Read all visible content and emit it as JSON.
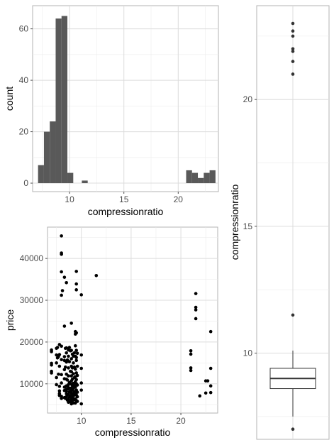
{
  "chart_data": [
    {
      "id": "histogram",
      "type": "bar",
      "xlabel": "compressionratio",
      "ylabel": "count",
      "xlim": [
        6.6,
        23.7
      ],
      "ylim": [
        -3.3,
        69
      ],
      "xticks": [
        10,
        15,
        20
      ],
      "yticks": [
        0,
        20,
        40,
        60
      ],
      "binwidth": 0.54,
      "bins": [
        {
          "x": 7.37,
          "count": 7
        },
        {
          "x": 7.91,
          "count": 20
        },
        {
          "x": 8.45,
          "count": 24
        },
        {
          "x": 8.99,
          "count": 64
        },
        {
          "x": 9.53,
          "count": 65
        },
        {
          "x": 10.07,
          "count": 4
        },
        {
          "x": 11.4,
          "count": 1
        },
        {
          "x": 21.0,
          "count": 5
        },
        {
          "x": 21.54,
          "count": 4
        },
        {
          "x": 22.08,
          "count": 2
        },
        {
          "x": 22.62,
          "count": 4
        },
        {
          "x": 23.16,
          "count": 5
        }
      ],
      "bar_color": "#595959",
      "grid": true
    },
    {
      "id": "scatter",
      "type": "scatter",
      "xlabel": "compressionratio",
      "ylabel": "price",
      "xlim": [
        6.6,
        23.7
      ],
      "ylim": [
        3000,
        47500
      ],
      "xticks": [
        10,
        15,
        20
      ],
      "yticks": [
        10000,
        20000,
        30000,
        40000
      ],
      "ytick_labels": [
        "10000",
        "20000",
        "30000",
        "40000"
      ],
      "point_color": "#000000",
      "grid": true,
      "points": [
        [
          8.0,
          45400
        ],
        [
          8.0,
          41300
        ],
        [
          8.0,
          41000
        ],
        [
          8.0,
          36800
        ],
        [
          8.3,
          35500
        ],
        [
          8.5,
          34200
        ],
        [
          8.1,
          32300
        ],
        [
          8.0,
          31200
        ],
        [
          9.5,
          36900
        ],
        [
          9.5,
          33900
        ],
        [
          9.5,
          32500
        ],
        [
          10.0,
          31300
        ],
        [
          11.5,
          35900
        ],
        [
          7.0,
          18100
        ],
        [
          7.0,
          17700
        ],
        [
          7.0,
          14900
        ],
        [
          7.0,
          14500
        ],
        [
          7.0,
          13000
        ],
        [
          7.0,
          12600
        ],
        [
          7.5,
          18500
        ],
        [
          7.5,
          16900
        ],
        [
          7.5,
          15000
        ],
        [
          7.5,
          11500
        ],
        [
          7.5,
          9800
        ],
        [
          7.6,
          18700
        ],
        [
          7.6,
          16200
        ],
        [
          7.7,
          16500
        ],
        [
          7.7,
          12300
        ],
        [
          7.8,
          19400
        ],
        [
          7.8,
          17000
        ],
        [
          7.8,
          14200
        ],
        [
          7.8,
          9400
        ],
        [
          7.8,
          8300
        ],
        [
          7.8,
          7700
        ],
        [
          7.8,
          7300
        ],
        [
          7.8,
          7200
        ],
        [
          8.0,
          19000
        ],
        [
          8.0,
          15800
        ],
        [
          8.0,
          12200
        ],
        [
          8.0,
          10200
        ],
        [
          8.0,
          7000
        ],
        [
          8.0,
          6500
        ],
        [
          8.3,
          23800
        ],
        [
          8.3,
          16500
        ],
        [
          8.3,
          15600
        ],
        [
          8.3,
          13400
        ],
        [
          8.3,
          11200
        ],
        [
          8.3,
          9200
        ],
        [
          8.3,
          8400
        ],
        [
          8.3,
          6700
        ],
        [
          8.4,
          18500
        ],
        [
          8.4,
          14000
        ],
        [
          8.4,
          9300
        ],
        [
          8.4,
          6500
        ],
        [
          8.5,
          18600
        ],
        [
          8.5,
          17400
        ],
        [
          8.5,
          15200
        ],
        [
          8.5,
          12300
        ],
        [
          8.5,
          11100
        ],
        [
          8.5,
          9500
        ],
        [
          8.5,
          8600
        ],
        [
          8.5,
          8200
        ],
        [
          8.5,
          7600
        ],
        [
          8.5,
          6900
        ],
        [
          8.6,
          15700
        ],
        [
          8.6,
          10900
        ],
        [
          8.6,
          7400
        ],
        [
          8.6,
          6100
        ],
        [
          8.7,
          18100
        ],
        [
          8.7,
          16600
        ],
        [
          8.7,
          13800
        ],
        [
          8.7,
          11900
        ],
        [
          8.7,
          9800
        ],
        [
          8.7,
          9100
        ],
        [
          8.7,
          8800
        ],
        [
          8.7,
          7500
        ],
        [
          8.7,
          6300
        ],
        [
          8.7,
          5600
        ],
        [
          8.8,
          18700
        ],
        [
          8.8,
          15300
        ],
        [
          8.8,
          10300
        ],
        [
          8.8,
          8100
        ],
        [
          8.8,
          6800
        ],
        [
          8.9,
          17900
        ],
        [
          8.9,
          13000
        ],
        [
          8.9,
          8900
        ],
        [
          8.9,
          7100
        ],
        [
          8.9,
          5700
        ],
        [
          9.0,
          24500
        ],
        [
          9.0,
          18000
        ],
        [
          9.0,
          16000
        ],
        [
          9.0,
          14200
        ],
        [
          9.0,
          12900
        ],
        [
          9.0,
          11900
        ],
        [
          9.0,
          10700
        ],
        [
          9.0,
          9900
        ],
        [
          9.0,
          9000
        ],
        [
          9.0,
          8300
        ],
        [
          9.0,
          7800
        ],
        [
          9.0,
          7200
        ],
        [
          9.0,
          6700
        ],
        [
          9.0,
          6200
        ],
        [
          9.0,
          5600
        ],
        [
          9.0,
          5200
        ],
        [
          9.1,
          17100
        ],
        [
          9.1,
          13800
        ],
        [
          9.1,
          11100
        ],
        [
          9.1,
          9600
        ],
        [
          9.1,
          8600
        ],
        [
          9.1,
          7000
        ],
        [
          9.1,
          6000
        ],
        [
          9.2,
          16600
        ],
        [
          9.2,
          15000
        ],
        [
          9.2,
          12400
        ],
        [
          9.2,
          10100
        ],
        [
          9.2,
          8900
        ],
        [
          9.2,
          7600
        ],
        [
          9.2,
          6500
        ],
        [
          9.2,
          5400
        ],
        [
          9.3,
          17400
        ],
        [
          9.3,
          14000
        ],
        [
          9.3,
          11500
        ],
        [
          9.3,
          9500
        ],
        [
          9.3,
          8100
        ],
        [
          9.3,
          7300
        ],
        [
          9.3,
          6200
        ],
        [
          9.4,
          22500
        ],
        [
          9.4,
          21900
        ],
        [
          9.4,
          19100
        ],
        [
          9.4,
          16600
        ],
        [
          9.4,
          13500
        ],
        [
          9.4,
          11700
        ],
        [
          9.4,
          10500
        ],
        [
          9.4,
          9200
        ],
        [
          9.4,
          8200
        ],
        [
          9.4,
          7600
        ],
        [
          9.4,
          6400
        ],
        [
          9.4,
          5400
        ],
        [
          9.5,
          22200
        ],
        [
          9.5,
          18000
        ],
        [
          9.5,
          16300
        ],
        [
          9.5,
          15600
        ],
        [
          9.5,
          12600
        ],
        [
          9.5,
          11000
        ],
        [
          9.5,
          10000
        ],
        [
          9.5,
          8500
        ],
        [
          9.5,
          7300
        ],
        [
          9.5,
          6000
        ],
        [
          9.6,
          17300
        ],
        [
          9.6,
          14200
        ],
        [
          9.6,
          12000
        ],
        [
          9.6,
          9700
        ],
        [
          9.6,
          8000
        ],
        [
          9.6,
          6900
        ],
        [
          9.6,
          5800
        ],
        [
          10.0,
          16900
        ],
        [
          10.0,
          13700
        ],
        [
          10.0,
          10200
        ],
        [
          10.0,
          8500
        ],
        [
          10.0,
          5200
        ],
        [
          21.0,
          17900
        ],
        [
          21.0,
          17100
        ],
        [
          21.0,
          13800
        ],
        [
          21.0,
          13200
        ],
        [
          21.5,
          31600
        ],
        [
          21.5,
          28300
        ],
        [
          21.5,
          27700
        ],
        [
          21.5,
          25600
        ],
        [
          21.9,
          7100
        ],
        [
          22.5,
          10700
        ],
        [
          22.5,
          7800
        ],
        [
          22.7,
          10700
        ],
        [
          23.0,
          22500
        ],
        [
          23.0,
          13700
        ],
        [
          23.0,
          9500
        ],
        [
          23.0,
          7900
        ]
      ]
    },
    {
      "id": "boxplot",
      "type": "box",
      "ylabel": "compressionratio",
      "ylim": [
        6.6,
        23.7
      ],
      "yticks": [
        10,
        15,
        20
      ],
      "box": {
        "lower_whisker": 7.5,
        "q1": 8.6,
        "median": 9.0,
        "q3": 9.4,
        "upper_whisker": 10.1
      },
      "outliers": [
        7.0,
        11.5,
        21.0,
        21.5,
        21.9,
        22.0,
        22.5,
        22.7,
        23.0
      ],
      "grid": true
    }
  ]
}
